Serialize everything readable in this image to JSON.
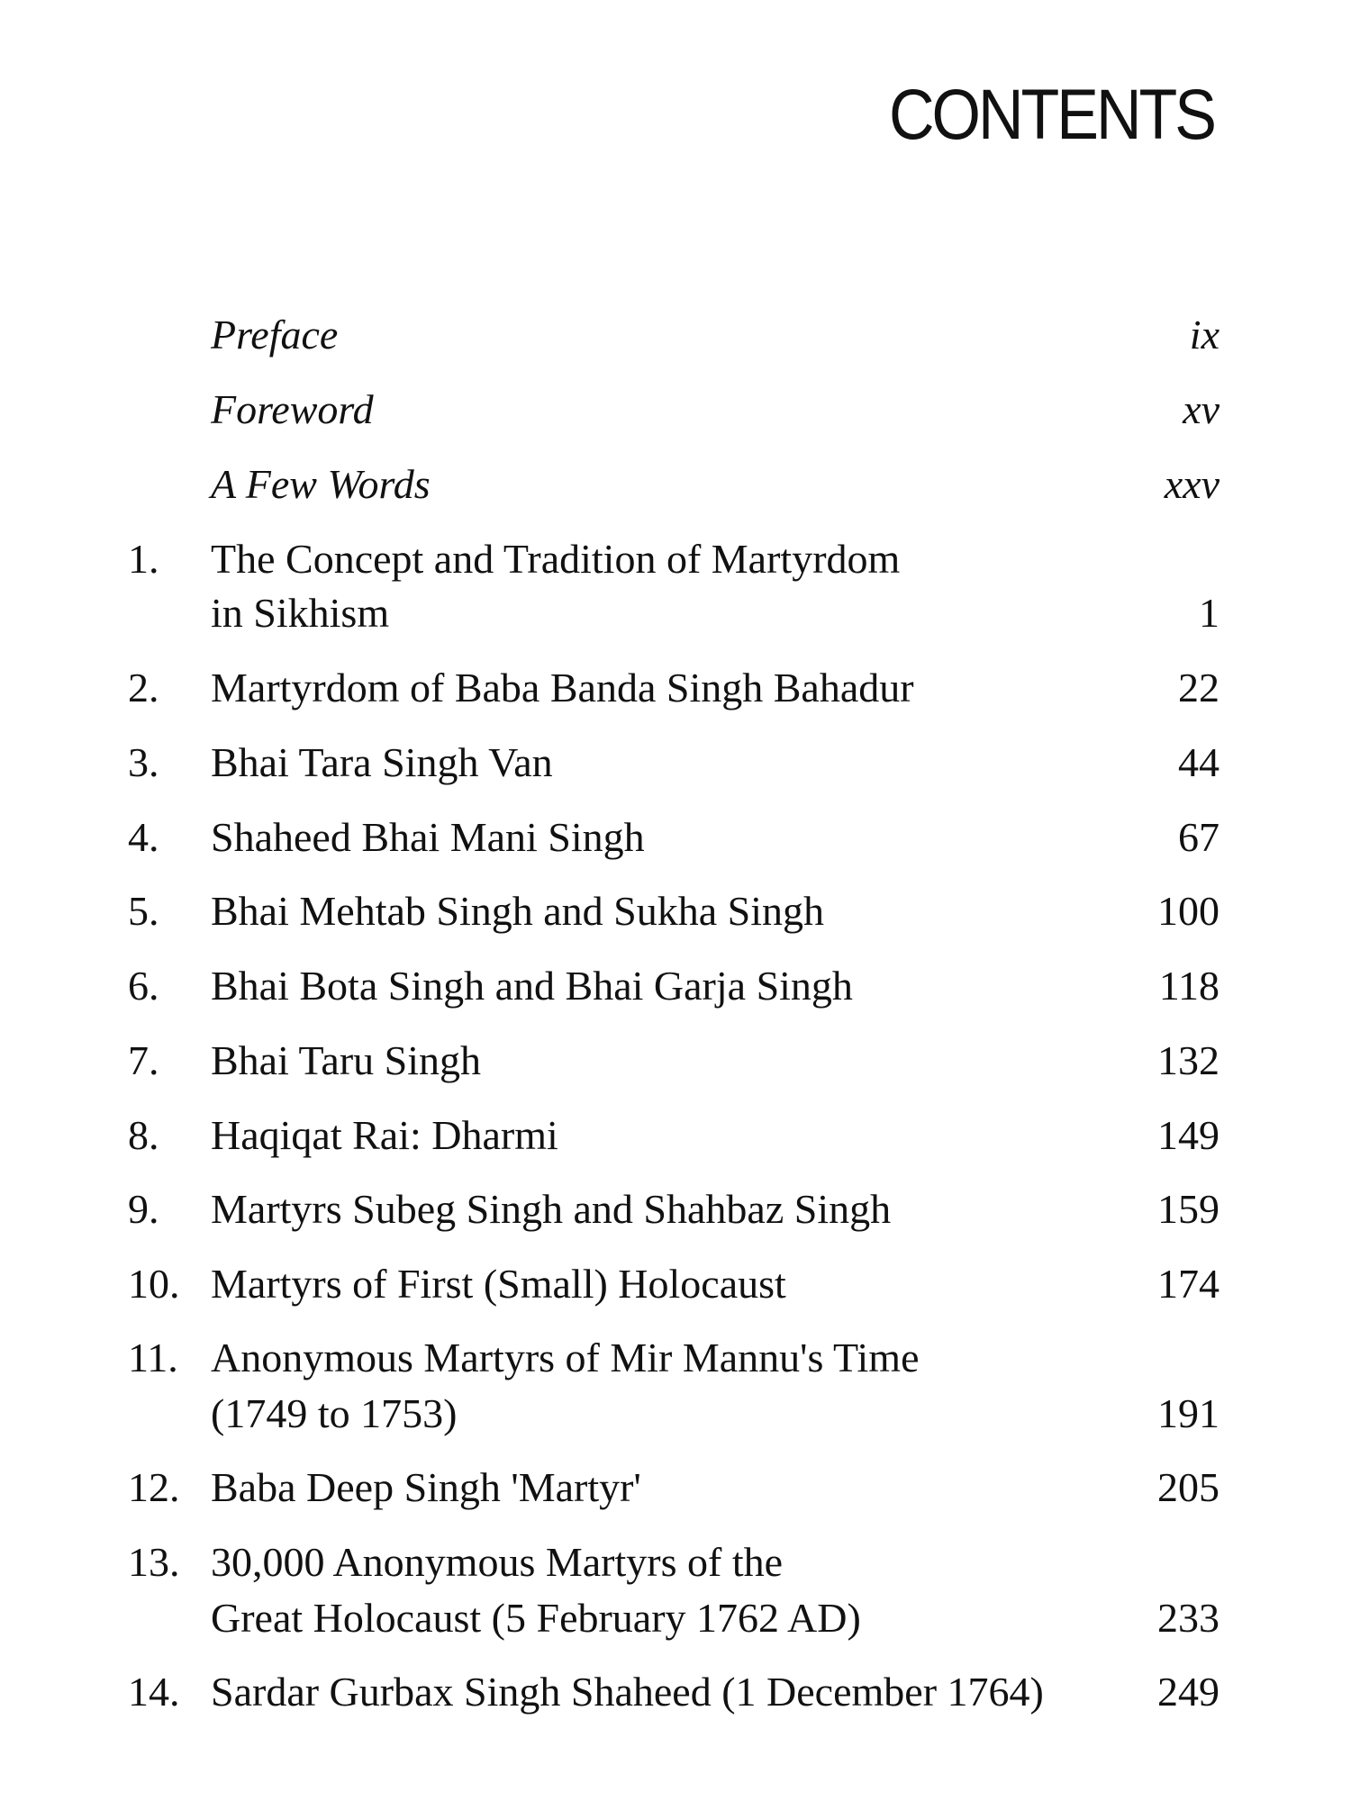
{
  "title": "CONTENTS",
  "front_matter": [
    {
      "title": "Preface",
      "page": "ix"
    },
    {
      "title": "Foreword",
      "page": "xv"
    },
    {
      "title": "A Few Words",
      "page": "xxv"
    }
  ],
  "chapters": [
    {
      "number": "1.",
      "lines": [
        "The Concept and Tradition of Martyrdom",
        "in Sikhism"
      ],
      "page": "1"
    },
    {
      "number": "2.",
      "lines": [
        "Martyrdom of Baba Banda Singh Bahadur"
      ],
      "page": "22"
    },
    {
      "number": "3.",
      "lines": [
        "Bhai Tara Singh Van"
      ],
      "page": "44"
    },
    {
      "number": "4.",
      "lines": [
        "Shaheed Bhai Mani Singh"
      ],
      "page": "67"
    },
    {
      "number": "5.",
      "lines": [
        "Bhai Mehtab Singh and Sukha Singh"
      ],
      "page": "100"
    },
    {
      "number": "6.",
      "lines": [
        "Bhai Bota Singh and Bhai Garja Singh"
      ],
      "page": "118"
    },
    {
      "number": "7.",
      "lines": [
        "Bhai Taru Singh"
      ],
      "page": "132"
    },
    {
      "number": "8.",
      "lines": [
        "Haqiqat Rai: Dharmi"
      ],
      "page": "149"
    },
    {
      "number": "9.",
      "lines": [
        "Martyrs Subeg Singh and Shahbaz Singh"
      ],
      "page": "159"
    },
    {
      "number": "10.",
      "lines": [
        "Martyrs of First (Small) Holocaust"
      ],
      "page": "174"
    },
    {
      "number": "11.",
      "lines": [
        "Anonymous Martyrs of Mir Mannu's Time",
        "(1749 to 1753)"
      ],
      "page": "191"
    },
    {
      "number": "12.",
      "lines": [
        "Baba Deep Singh 'Martyr'"
      ],
      "page": "205"
    },
    {
      "number": "13.",
      "lines": [
        "30,000 Anonymous Martyrs of the",
        "Great Holocaust (5 February 1762 AD)"
      ],
      "page": "233"
    },
    {
      "number": "14.",
      "lines": [
        "Sardar Gurbax Singh Shaheed (1 December 1764)"
      ],
      "page": "249"
    }
  ]
}
